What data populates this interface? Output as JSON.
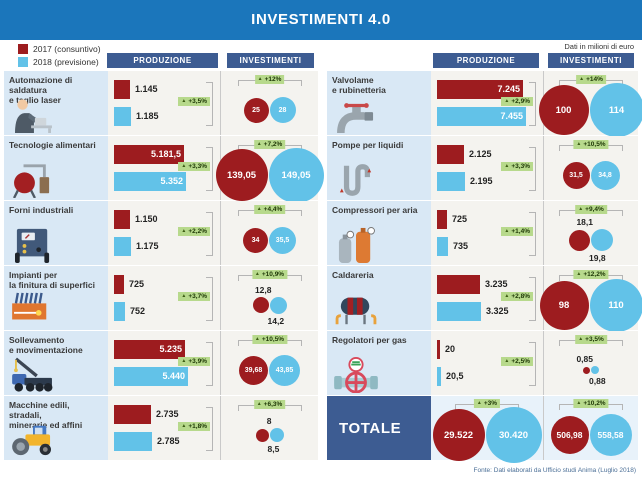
{
  "title": "INVESTIMENTI 4.0",
  "units_note": "Dati in milioni di euro",
  "footer": "Fonte: Dati elaborati da Ufficio studi Anima (Luglio 2018)",
  "column_headers": {
    "produzione": "PRODUZIONE",
    "investimenti": "INVESTIMENTI"
  },
  "legend": [
    {
      "label": "2017 (consuntivo)",
      "color": "#9d1c1f"
    },
    {
      "label": "2018 (previsione)",
      "color": "#62c2e8"
    }
  ],
  "icons": {
    "up_arrow": "▲"
  },
  "colors": {
    "header_blue": "#1b76bb",
    "navy": "#3d5c92",
    "red_2017": "#9d1c1f",
    "blue_2018": "#62c2e8",
    "badge_green": "#b7d98c",
    "label_box_blue": "#d9e8f5"
  },
  "sectors": [
    {
      "name": "Automazione di saldatura\ne taglio laser",
      "icon": "welder-icon",
      "prod": {
        "y2017": "1.145",
        "y2018": "1.185",
        "pct": "+3,5%",
        "w17": 16,
        "w18": 17,
        "inside": false
      },
      "inv": {
        "y2017": "25",
        "y2018": "28",
        "pct": "+12%",
        "d17": 25,
        "d18": 26,
        "inside": true
      }
    },
    {
      "name": "Tecnologie alimentari",
      "icon": "food-tech-icon",
      "prod": {
        "y2017": "5.181,5",
        "y2018": "5.352",
        "pct": "+3,3%",
        "w17": 70,
        "w18": 72,
        "inside": true
      },
      "inv": {
        "y2017": "139,05",
        "y2018": "149,05",
        "pct": "+7,2%",
        "d17": 52,
        "d18": 55,
        "inside": true
      }
    },
    {
      "name": "Forni industriali",
      "icon": "industrial-oven-icon",
      "prod": {
        "y2017": "1.150",
        "y2018": "1.175",
        "pct": "+2,2%",
        "w17": 16,
        "w18": 17,
        "inside": false
      },
      "inv": {
        "y2017": "34",
        "y2018": "35,5",
        "pct": "+4,4%",
        "d17": 25,
        "d18": 27,
        "inside": true
      }
    },
    {
      "name": "Impianti per\nla finitura di superfici",
      "icon": "surface-finishing-icon",
      "prod": {
        "y2017": "725",
        "y2018": "752",
        "pct": "+3,7%",
        "w17": 10,
        "w18": 11,
        "inside": false
      },
      "inv": {
        "y2017": "12,8",
        "y2018": "14,2",
        "pct": "+10,9%",
        "d17": 16,
        "d18": 17,
        "inside": false
      }
    },
    {
      "name": "Sollevamento\ne movimentazione",
      "icon": "crane-icon",
      "prod": {
        "y2017": "5.235",
        "y2018": "5.440",
        "pct": "+3,9%",
        "w17": 71,
        "w18": 74,
        "inside": true
      },
      "inv": {
        "y2017": "39,68",
        "y2018": "43,85",
        "pct": "+10,5%",
        "d17": 29,
        "d18": 31,
        "inside": true
      }
    },
    {
      "name": "Macchine edili, stradali,\nminerarie ed affini",
      "icon": "road-roller-icon",
      "prod": {
        "y2017": "2.735",
        "y2018": "2.785",
        "pct": "+1,8%",
        "w17": 37,
        "w18": 38,
        "inside": false
      },
      "inv": {
        "y2017": "8",
        "y2018": "8,5",
        "pct": "+6,3%",
        "d17": 13,
        "d18": 14,
        "inside": false
      }
    },
    {
      "name": "Valvolame\ne rubinetteria",
      "icon": "faucet-icon",
      "prod": {
        "y2017": "7.245",
        "y2018": "7.455",
        "pct": "+2,9%",
        "w17": 86,
        "w18": 89,
        "inside": true
      },
      "inv": {
        "y2017": "100",
        "y2018": "114",
        "pct": "+14%",
        "d17": 50,
        "d18": 54,
        "inside": true
      }
    },
    {
      "name": "Pompe per liquidi",
      "icon": "pump-icon",
      "prod": {
        "y2017": "2.125",
        "y2018": "2.195",
        "pct": "+3,3%",
        "w17": 27,
        "w18": 28,
        "inside": false
      },
      "inv": {
        "y2017": "31,5",
        "y2018": "34,8",
        "pct": "+10,5%",
        "d17": 27,
        "d18": 29,
        "inside": true
      }
    },
    {
      "name": "Compressori per aria",
      "icon": "air-compressor-icon",
      "prod": {
        "y2017": "725",
        "y2018": "735",
        "pct": "+1,4%",
        "w17": 10,
        "w18": 11,
        "inside": false
      },
      "inv": {
        "y2017": "18,1",
        "y2018": "19,8",
        "pct": "+9,4%",
        "d17": 21,
        "d18": 22,
        "inside": false
      }
    },
    {
      "name": "Caldareria",
      "icon": "boiler-icon",
      "prod": {
        "y2017": "3.235",
        "y2018": "3.325",
        "pct": "+2,8%",
        "w17": 43,
        "w18": 44,
        "inside": false
      },
      "inv": {
        "y2017": "98",
        "y2018": "110",
        "pct": "+12,2%",
        "d17": 49,
        "d18": 53,
        "inside": true
      }
    },
    {
      "name": "Regolatori per gas",
      "icon": "gas-regulator-icon",
      "prod": {
        "y2017": "20",
        "y2018": "20,5",
        "pct": "+2,5%",
        "w17": 3,
        "w18": 4,
        "inside": false
      },
      "inv": {
        "y2017": "0,85",
        "y2018": "0,88",
        "pct": "+3,5%",
        "d17": 7,
        "d18": 8,
        "inside": false
      }
    }
  ],
  "totale": {
    "label": "TOTALE",
    "prod": {
      "y2017": "29.522",
      "y2018": "30.420",
      "pct": "+3%",
      "d17": 52,
      "d18": 56
    },
    "inv": {
      "y2017": "506,98",
      "y2018": "558,58",
      "pct": "+10,2%",
      "d17": 38,
      "d18": 42
    }
  },
  "chart_data": {
    "type": "bar",
    "title": "INVESTIMENTI 4.0",
    "units": "milioni di euro",
    "legend_position": "top-left",
    "series_years": [
      "2017 (consuntivo)",
      "2018 (previsione)"
    ],
    "categories": [
      "Automazione di saldatura e taglio laser",
      "Tecnologie alimentari",
      "Forni industriali",
      "Impianti per la finitura di superfici",
      "Sollevamento e movimentazione",
      "Macchine edili, stradali, minerarie ed affini",
      "Valvolame e rubinetteria",
      "Pompe per liquidi",
      "Compressori per aria",
      "Caldareria",
      "Regolatori per gas"
    ],
    "produzione": {
      "series": [
        {
          "name": "2017",
          "values": [
            1145,
            5181.5,
            1150,
            725,
            5235,
            2735,
            7245,
            2125,
            725,
            3235,
            20
          ]
        },
        {
          "name": "2018",
          "values": [
            1185,
            5352,
            1175,
            752,
            5440,
            2785,
            7455,
            2195,
            735,
            3325,
            20.5
          ]
        }
      ],
      "delta_pct": [
        3.5,
        3.3,
        2.2,
        3.7,
        3.9,
        1.8,
        2.9,
        3.3,
        1.4,
        2.8,
        2.5
      ]
    },
    "investimenti": {
      "series": [
        {
          "name": "2017",
          "values": [
            25,
            139.05,
            34,
            12.8,
            39.68,
            8,
            100,
            31.5,
            18.1,
            98,
            0.85
          ]
        },
        {
          "name": "2018",
          "values": [
            28,
            149.05,
            35.5,
            14.2,
            43.85,
            8.5,
            114,
            34.8,
            19.8,
            110,
            0.88
          ]
        }
      ],
      "delta_pct": [
        12,
        7.2,
        4.4,
        10.9,
        10.5,
        6.3,
        14,
        10.5,
        9.4,
        12.2,
        3.5
      ]
    },
    "totale": {
      "produzione": {
        "2017": 29522,
        "2018": 30420,
        "delta_pct": 3
      },
      "investimenti": {
        "2017": 506.98,
        "2018": 558.58,
        "delta_pct": 10.2
      }
    }
  }
}
